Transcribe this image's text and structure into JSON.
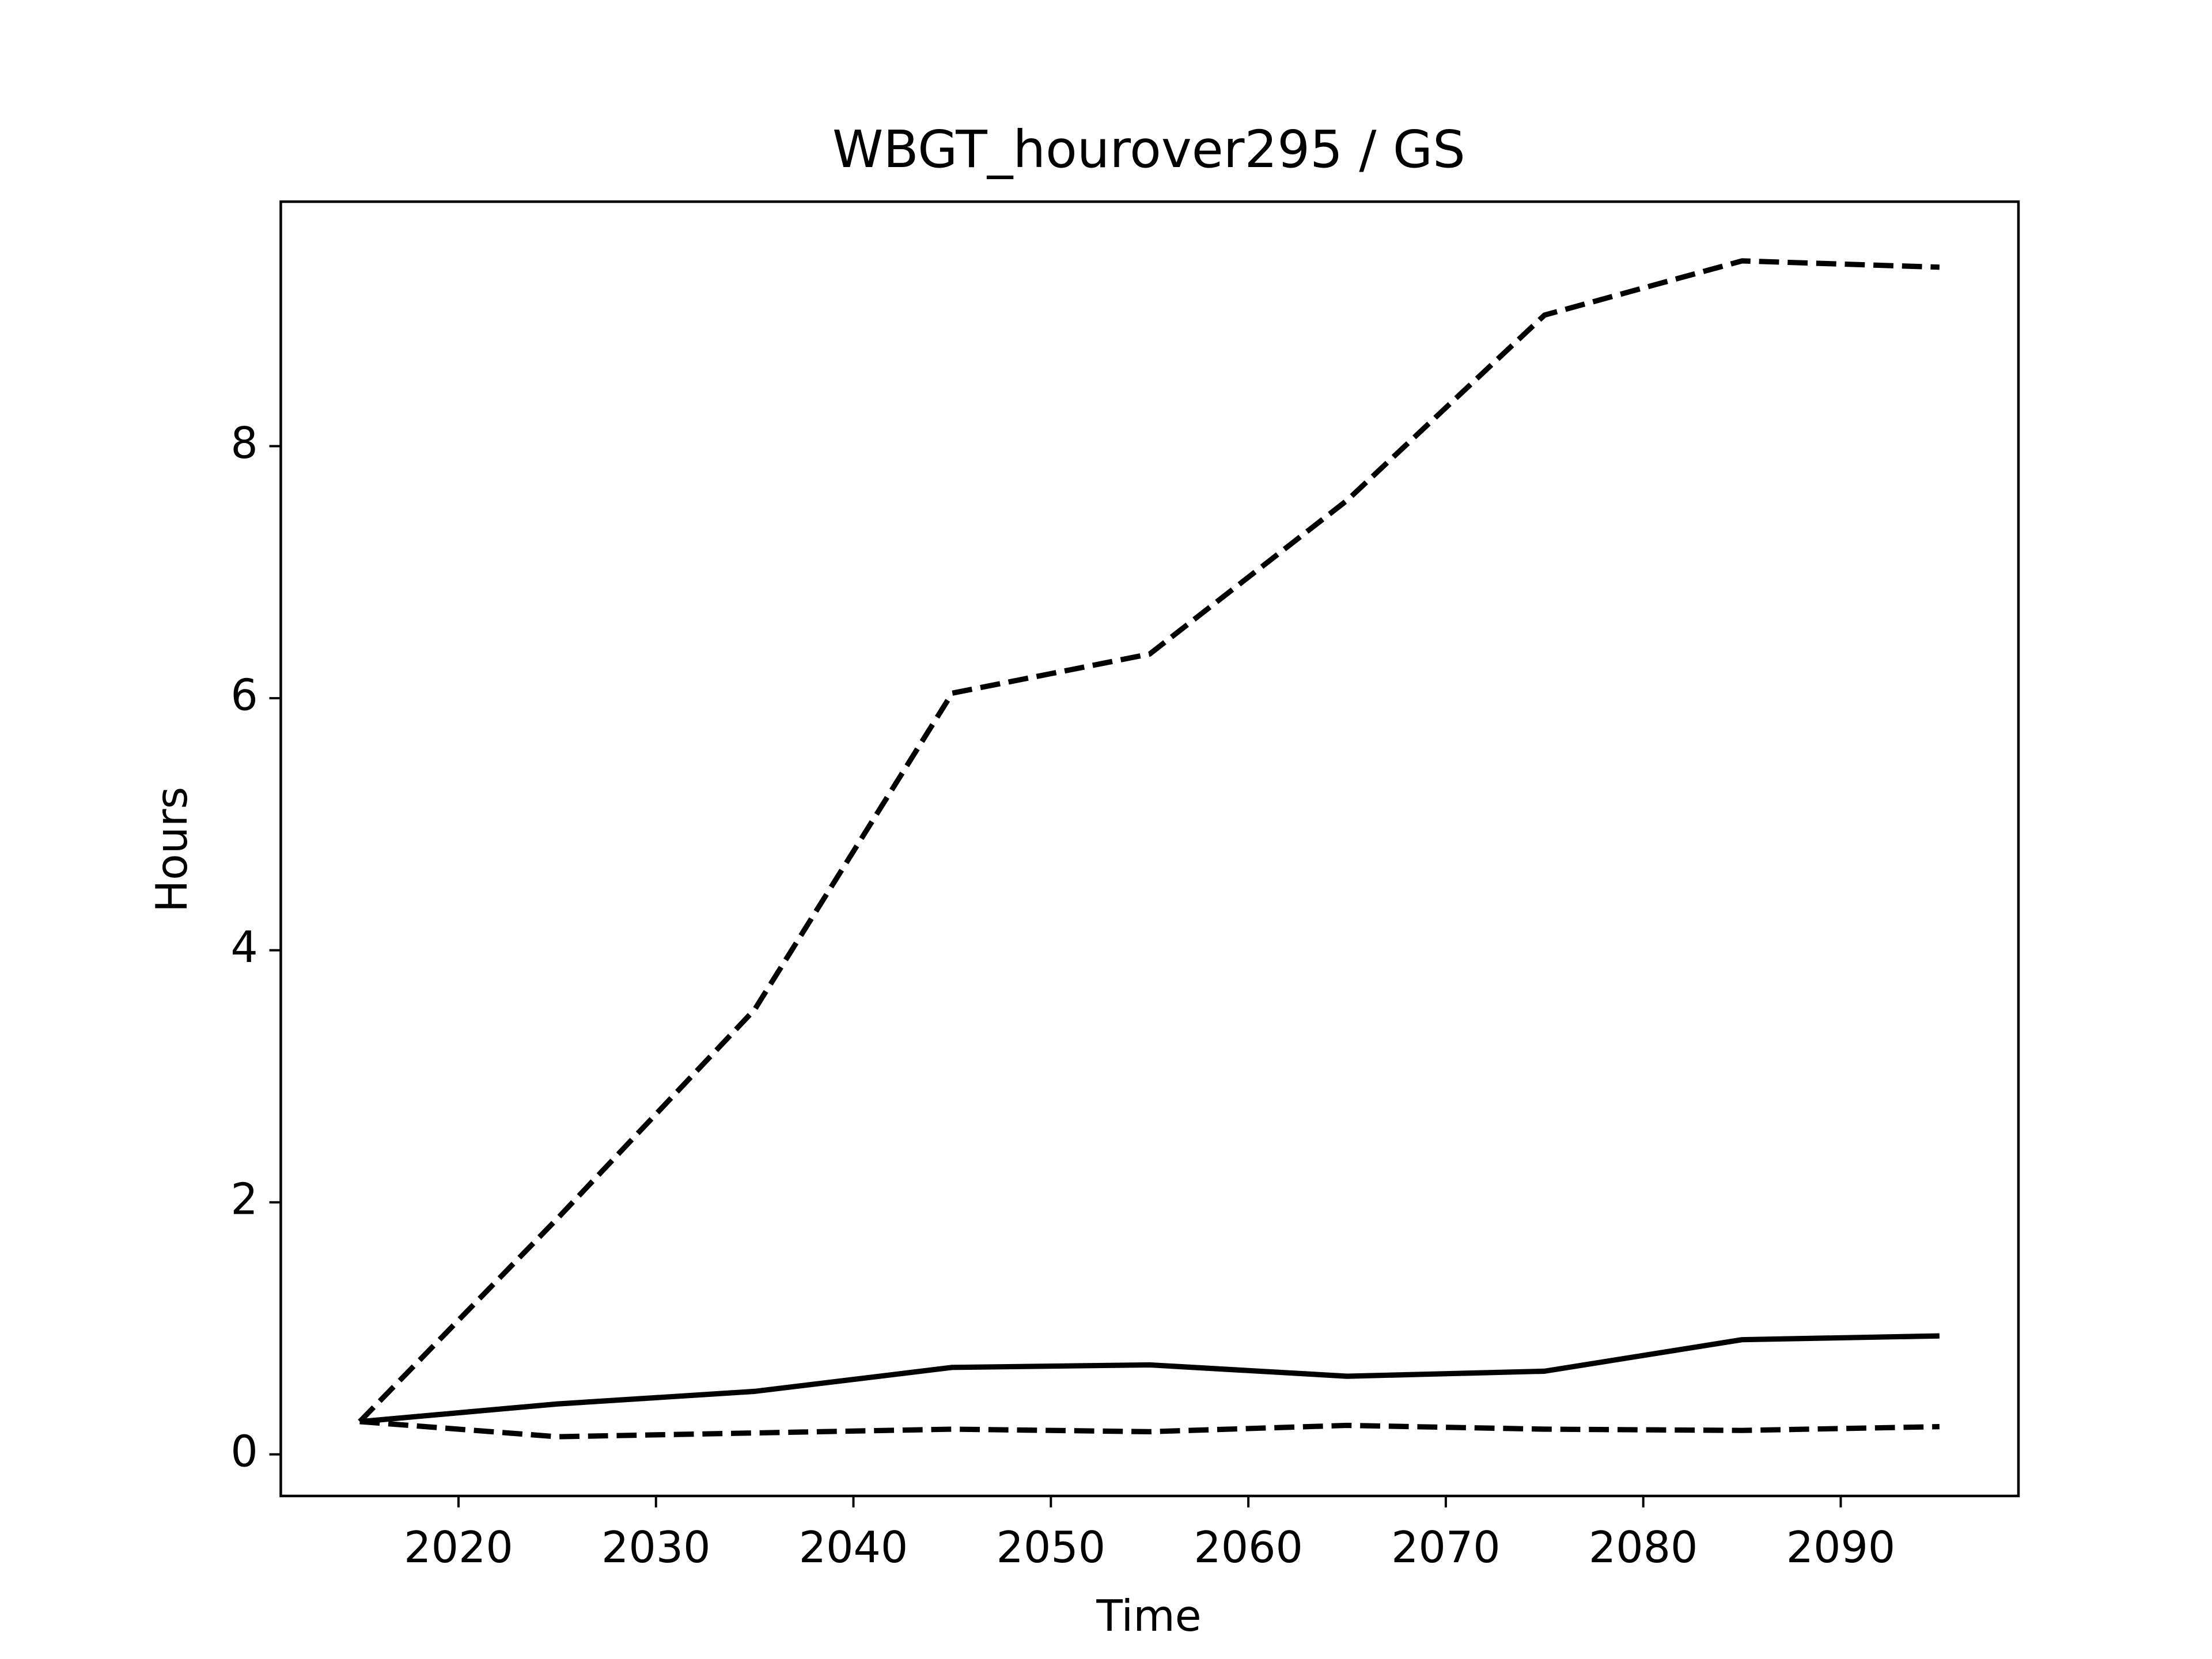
{
  "chart_data": {
    "type": "line",
    "title": "WBGT_hourover295 / GS",
    "xlabel": "Time",
    "ylabel": "Hours",
    "x": [
      2015,
      2025,
      2035,
      2045,
      2055,
      2065,
      2075,
      2085,
      2095
    ],
    "series": [
      {
        "color": "#000000",
        "linestyle": "solid",
        "values": [
          0.26,
          0.4,
          0.5,
          0.69,
          0.71,
          0.62,
          0.66,
          0.91,
          0.94
        ]
      },
      {
        "color": "#000000",
        "linestyle": "dashed",
        "values": [
          0.26,
          1.87,
          3.53,
          6.04,
          6.35,
          7.57,
          9.04,
          9.47,
          9.42
        ]
      },
      {
        "color": "#000000",
        "linestyle": "dashed",
        "values": [
          0.26,
          0.14,
          0.17,
          0.2,
          0.18,
          0.23,
          0.2,
          0.19,
          0.22
        ]
      }
    ],
    "xlim": [
      2011,
      2099
    ],
    "ylim": [
      -0.33,
      9.94
    ],
    "xticks": [
      2020,
      2030,
      2040,
      2050,
      2060,
      2070,
      2080,
      2090
    ],
    "yticks": [
      0,
      2,
      4,
      6,
      8
    ],
    "grid": false
  }
}
